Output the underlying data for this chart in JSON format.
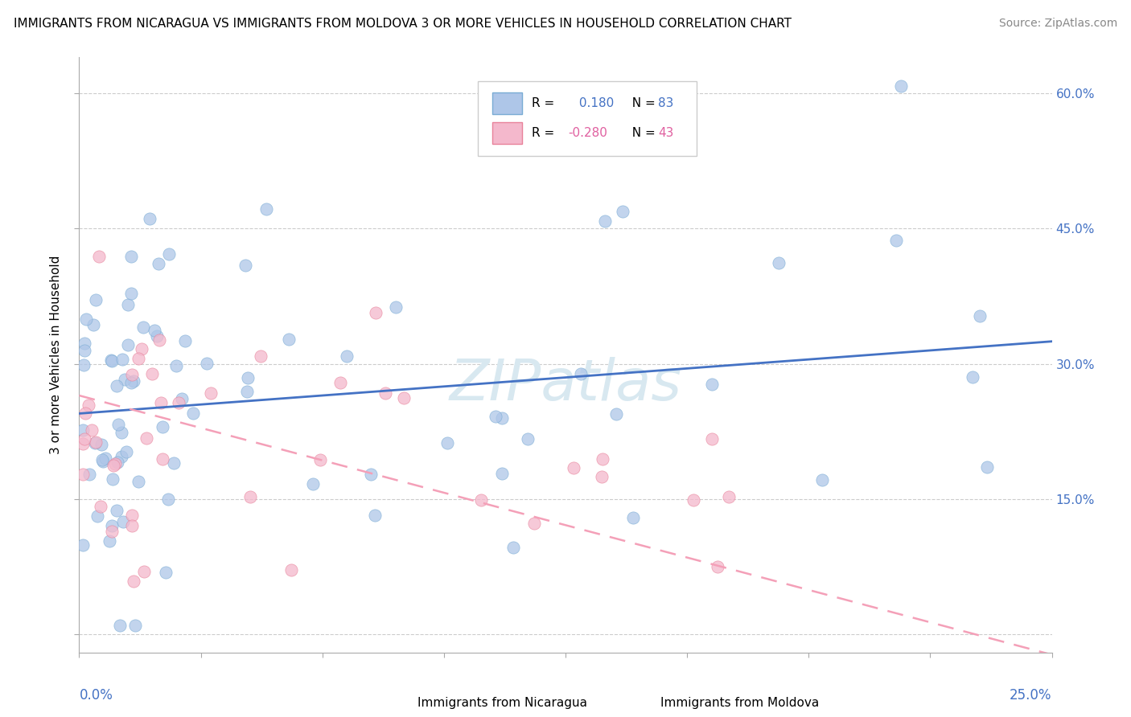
{
  "title": "IMMIGRANTS FROM NICARAGUA VS IMMIGRANTS FROM MOLDOVA 3 OR MORE VEHICLES IN HOUSEHOLD CORRELATION CHART",
  "source": "Source: ZipAtlas.com",
  "ylabel": "3 or more Vehicles in Household",
  "x_range": [
    0.0,
    0.25
  ],
  "y_range": [
    -0.02,
    0.64
  ],
  "y_ticks": [
    0.0,
    0.15,
    0.3,
    0.45,
    0.6
  ],
  "y_tick_labels": [
    "",
    "15.0%",
    "30.0%",
    "45.0%",
    "60.0%"
  ],
  "nicaragua_R": 0.18,
  "nicaragua_N": 83,
  "moldova_R": -0.28,
  "moldova_N": 43,
  "nicaragua_color": "#aec6e8",
  "moldova_color": "#f4b8cc",
  "nicaragua_edge_color": "#7aacd4",
  "moldova_edge_color": "#e8829a",
  "nicaragua_line_color": "#4472c4",
  "moldova_line_color": "#f4a0b8",
  "watermark": "ZIPatlas",
  "watermark_color": "#d8e8f0",
  "background_color": "#ffffff",
  "title_fontsize": 11,
  "source_fontsize": 10,
  "tick_label_fontsize": 11,
  "ylabel_fontsize": 11,
  "legend_fontsize": 11,
  "scatter_size": 120,
  "scatter_alpha": 0.75
}
